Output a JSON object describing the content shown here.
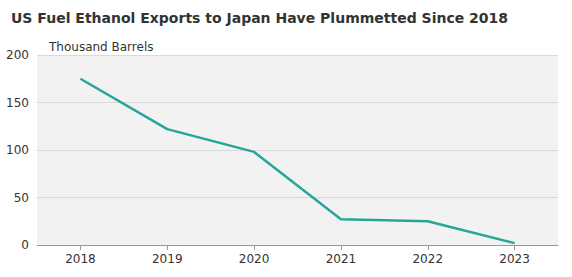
{
  "chart_data": {
    "type": "line",
    "title": "US Fuel Ethanol Exports to Japan Have Plummetted Since 2018",
    "subtitle": "Thousand Barrels",
    "categories": [
      "2018",
      "2019",
      "2020",
      "2021",
      "2022",
      "2023"
    ],
    "values": [
      175,
      122,
      98,
      27,
      25,
      2
    ],
    "color": "#26a699",
    "ylim": [
      0,
      200
    ],
    "yticks": [
      0,
      50,
      100,
      150,
      200
    ],
    "grid": true
  }
}
